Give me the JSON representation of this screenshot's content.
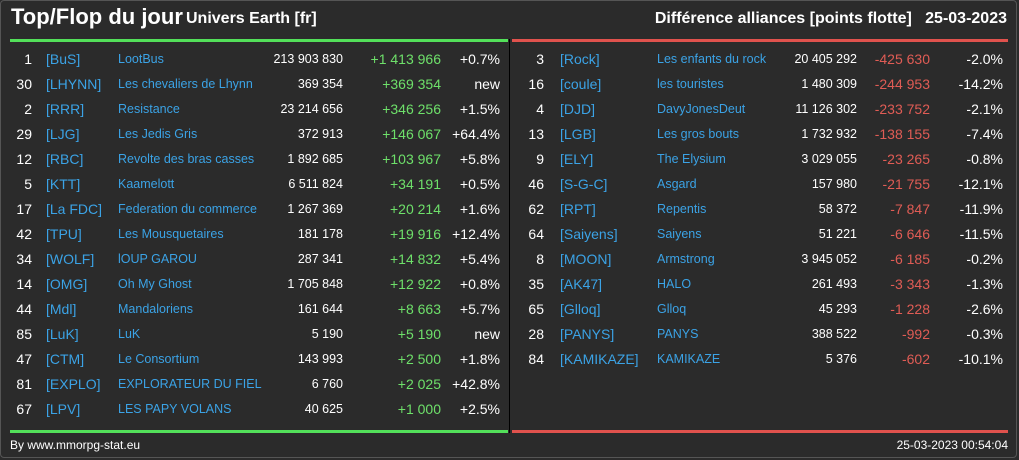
{
  "header": {
    "title": "Top/Flop du jour",
    "universe": "Univers Earth [fr]",
    "category": "Différence alliances [points flotte]",
    "date": "25-03-2023"
  },
  "top": [
    {
      "rank": "1",
      "tag": "[BuS]",
      "name": "LootBus",
      "points": "213 903 830",
      "diff": "+1 413 966",
      "pct": "+0.7%"
    },
    {
      "rank": "30",
      "tag": "[LHYNN]",
      "name": "Les chevaliers de Lhynn",
      "points": "369 354",
      "diff": "+369 354",
      "pct": "new"
    },
    {
      "rank": "2",
      "tag": "[RRR]",
      "name": "Resistance",
      "points": "23 214 656",
      "diff": "+346 256",
      "pct": "+1.5%"
    },
    {
      "rank": "29",
      "tag": "[LJG]",
      "name": "Les Jedis Gris",
      "points": "372 913",
      "diff": "+146 067",
      "pct": "+64.4%"
    },
    {
      "rank": "12",
      "tag": "[RBC]",
      "name": "Revolte des bras casses",
      "points": "1 892 685",
      "diff": "+103 967",
      "pct": "+5.8%"
    },
    {
      "rank": "5",
      "tag": "[KTT]",
      "name": "Kaamelott",
      "points": "6 511 824",
      "diff": "+34 191",
      "pct": "+0.5%"
    },
    {
      "rank": "17",
      "tag": "[La FDC]",
      "name": "Federation du commerce",
      "points": "1 267 369",
      "diff": "+20 214",
      "pct": "+1.6%"
    },
    {
      "rank": "42",
      "tag": "[TPU]",
      "name": "Les Mousquetaires",
      "points": "181 178",
      "diff": "+19 916",
      "pct": "+12.4%"
    },
    {
      "rank": "34",
      "tag": "[WOLF]",
      "name": "lOUP GAROU",
      "points": "287 341",
      "diff": "+14 832",
      "pct": "+5.4%"
    },
    {
      "rank": "14",
      "tag": "[OMG]",
      "name": "Oh My Ghost",
      "points": "1 705 848",
      "diff": "+12 922",
      "pct": "+0.8%"
    },
    {
      "rank": "44",
      "tag": "[Mdl]",
      "name": "Mandaloriens",
      "points": "161 644",
      "diff": "+8 663",
      "pct": "+5.7%"
    },
    {
      "rank": "85",
      "tag": "[LuK]",
      "name": "LuK",
      "points": "5 190",
      "diff": "+5 190",
      "pct": "new"
    },
    {
      "rank": "47",
      "tag": "[CTM]",
      "name": "Le Consortium",
      "points": "143 993",
      "diff": "+2 500",
      "pct": "+1.8%"
    },
    {
      "rank": "81",
      "tag": "[EXPLO]",
      "name": "EXPLORATEUR DU FIEL",
      "points": "6 760",
      "diff": "+2 025",
      "pct": "+42.8%"
    },
    {
      "rank": "67",
      "tag": "[LPV]",
      "name": "LES PAPY VOLANS",
      "points": "40 625",
      "diff": "+1 000",
      "pct": "+2.5%"
    }
  ],
  "flop": [
    {
      "rank": "3",
      "tag": "[Rock]",
      "name": "Les enfants du rock",
      "points": "20 405 292",
      "diff": "-425 630",
      "pct": "-2.0%"
    },
    {
      "rank": "16",
      "tag": "[coule]",
      "name": "les touristes",
      "points": "1 480 309",
      "diff": "-244 953",
      "pct": "-14.2%"
    },
    {
      "rank": "4",
      "tag": "[DJD]",
      "name": "DavyJonesDeut",
      "points": "11 126 302",
      "diff": "-233 752",
      "pct": "-2.1%"
    },
    {
      "rank": "13",
      "tag": "[LGB]",
      "name": "Les gros bouts",
      "points": "1 732 932",
      "diff": "-138 155",
      "pct": "-7.4%"
    },
    {
      "rank": "9",
      "tag": "[ELY]",
      "name": "The Elysium",
      "points": "3 029 055",
      "diff": "-23 265",
      "pct": "-0.8%"
    },
    {
      "rank": "46",
      "tag": "[S-G-C]",
      "name": "Asgard",
      "points": "157 980",
      "diff": "-21 755",
      "pct": "-12.1%"
    },
    {
      "rank": "62",
      "tag": "[RPT]",
      "name": "Repentis",
      "points": "58 372",
      "diff": "-7 847",
      "pct": "-11.9%"
    },
    {
      "rank": "64",
      "tag": "[Saiyens]",
      "name": "Saiyens",
      "points": "51 221",
      "diff": "-6 646",
      "pct": "-11.5%"
    },
    {
      "rank": "8",
      "tag": "[MOON]",
      "name": "Armstrong",
      "points": "3 945 052",
      "diff": "-6 185",
      "pct": "-0.2%"
    },
    {
      "rank": "35",
      "tag": "[AK47]",
      "name": "HALO",
      "points": "261 493",
      "diff": "-3 343",
      "pct": "-1.3%"
    },
    {
      "rank": "65",
      "tag": "[Glloq]",
      "name": "Glloq",
      "points": "45 293",
      "diff": "-1 228",
      "pct": "-2.6%"
    },
    {
      "rank": "28",
      "tag": "[PANYS]",
      "name": "PANYS",
      "points": "388 522",
      "diff": "-992",
      "pct": "-0.3%"
    },
    {
      "rank": "84",
      "tag": "[KAMIKAZE]",
      "name": "KAMIKAZE",
      "points": "5 376",
      "diff": "-602",
      "pct": "-10.1%"
    }
  ],
  "footer": {
    "source": "By www.mmorpg-stat.eu",
    "timestamp": "25-03-2023 00:54:04"
  },
  "colors": {
    "positive": "#6ee06a",
    "negative": "#e05c55",
    "link": "#3ba3e6"
  }
}
